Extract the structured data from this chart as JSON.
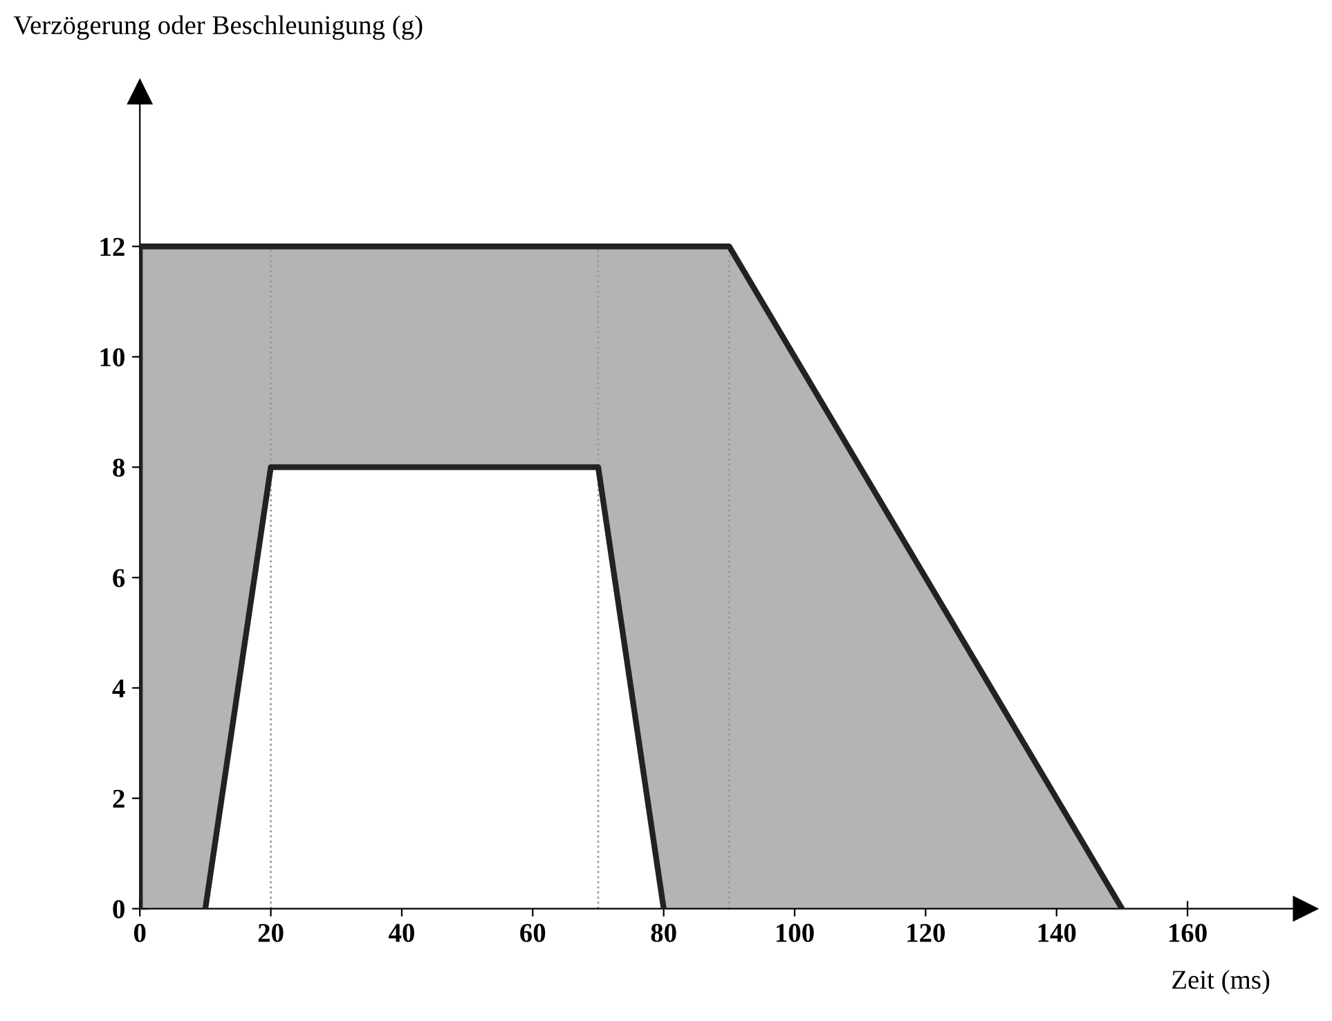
{
  "chart_data": {
    "type": "area",
    "xlabel": "Zeit (ms)",
    "ylabel": "Verzögerung oder Beschleunigung (g)",
    "series": [
      {
        "color": "#b4b4b4",
        "x": [
          0,
          0,
          90,
          150
        ],
        "values": [
          0,
          12,
          12,
          0
        ]
      },
      {
        "color": "#ffffff",
        "x": [
          10,
          20,
          70,
          80
        ],
        "values": [
          0,
          8,
          8,
          0
        ]
      }
    ],
    "xlim": [
      0,
      178
    ],
    "ylim": [
      0,
      14.8
    ],
    "xticks": [
      0,
      20,
      40,
      60,
      80,
      100,
      120,
      140,
      160
    ],
    "yticks": [
      0,
      2,
      4,
      6,
      8,
      10,
      12
    ],
    "ref_lines": [
      {
        "axis": "x",
        "value": 20,
        "color": "#999999",
        "line_style": "dotted"
      },
      {
        "axis": "x",
        "value": 70,
        "color": "#999999",
        "line_style": "dotted"
      },
      {
        "axis": "x",
        "value": 90,
        "color": "#999999",
        "line_style": "dotted"
      }
    ],
    "grid": false,
    "legend": false
  }
}
